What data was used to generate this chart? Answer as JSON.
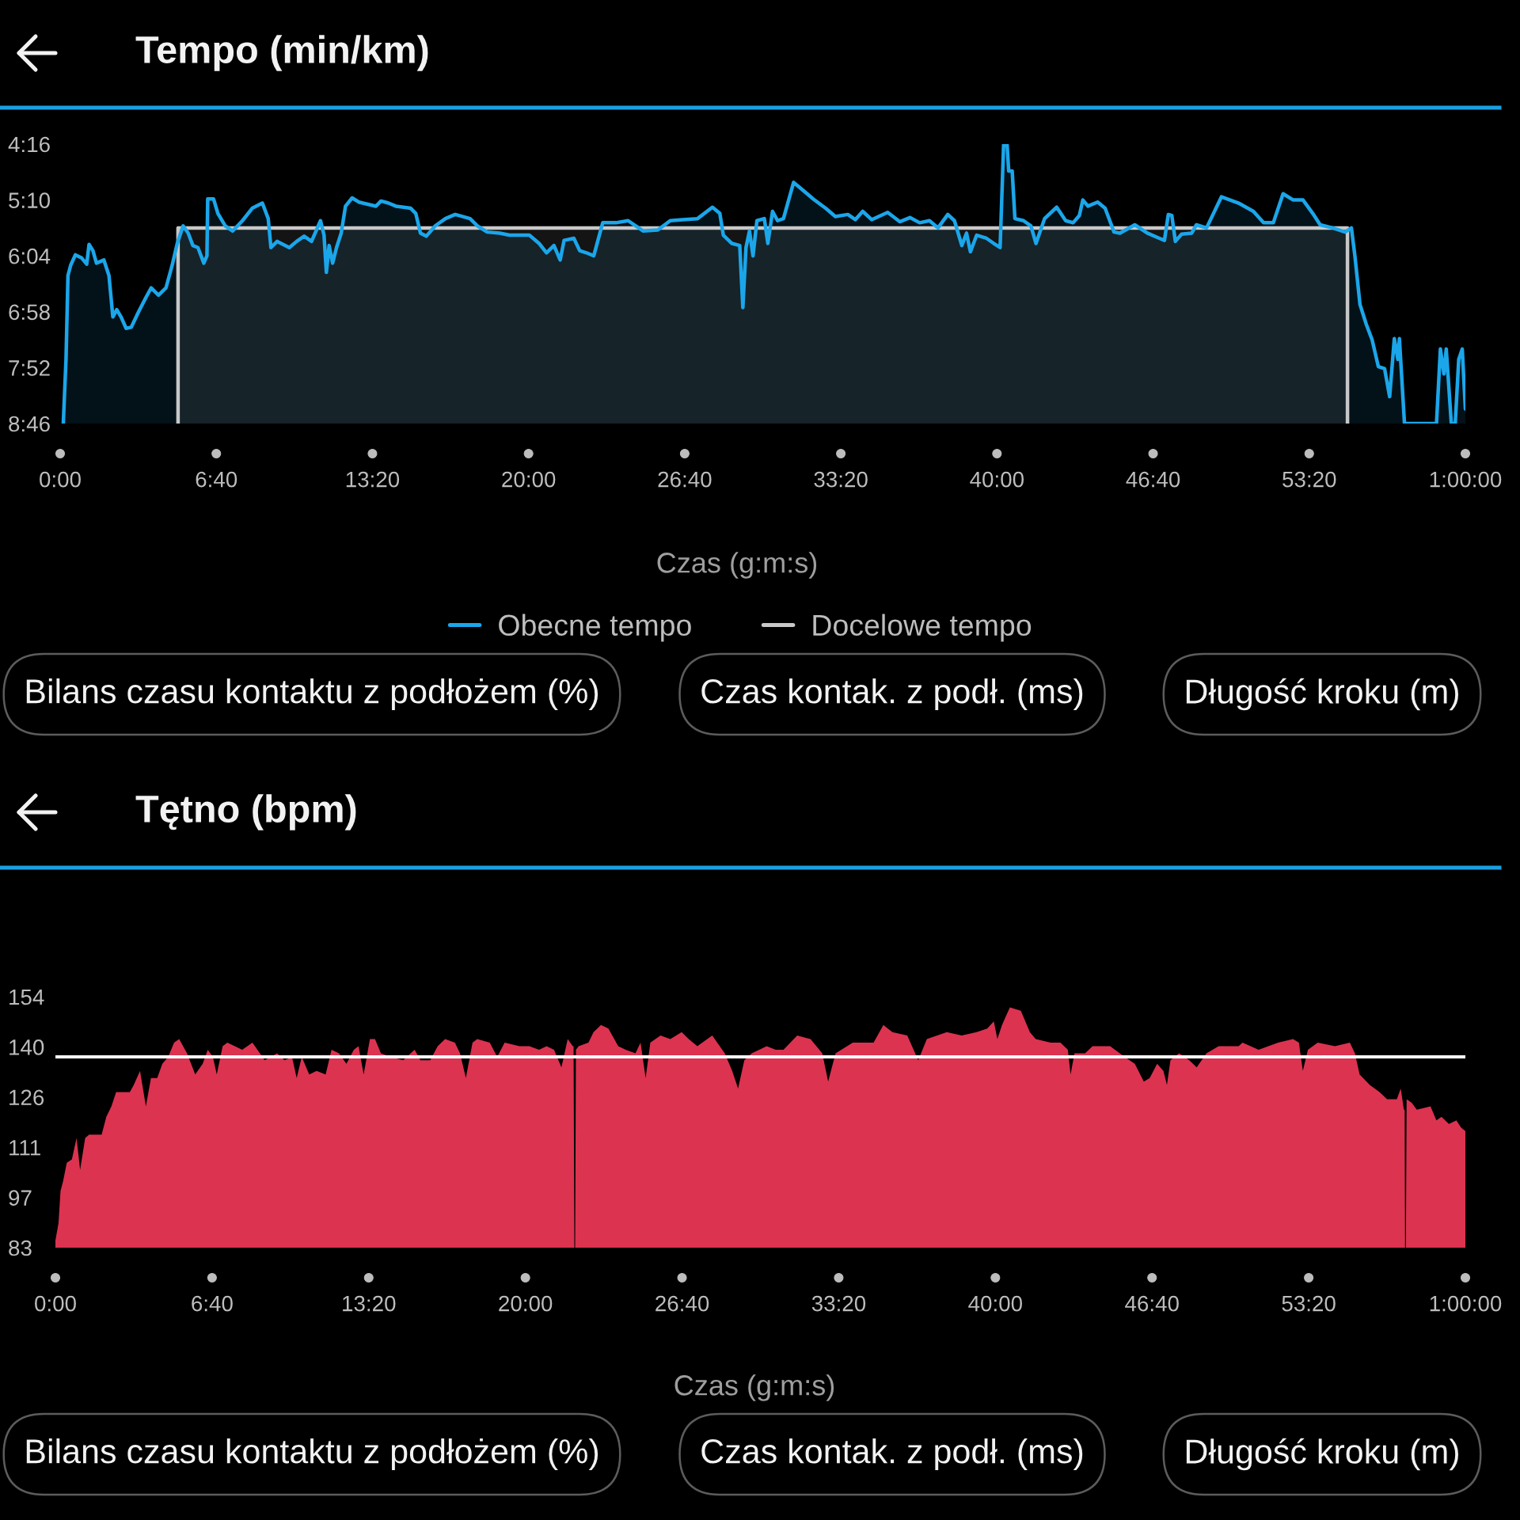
{
  "chart_data": [
    {
      "type": "line",
      "title": "Tempo (min/km)",
      "xlabel": "Czas (g:m:s)",
      "xlim": [
        0,
        3600
      ],
      "xticks": [
        {
          "value": 0,
          "label": "0:00"
        },
        {
          "value": 400,
          "label": "6:40"
        },
        {
          "value": 800,
          "label": "13:20"
        },
        {
          "value": 1200,
          "label": "20:00"
        },
        {
          "value": 1600,
          "label": "26:40"
        },
        {
          "value": 2000,
          "label": "33:20"
        },
        {
          "value": 2400,
          "label": "40:00"
        },
        {
          "value": 2800,
          "label": "46:40"
        },
        {
          "value": 3200,
          "label": "53:20"
        },
        {
          "value": 3600,
          "label": "1:00:00"
        }
      ],
      "ylim": [
        526,
        256
      ],
      "yticks": [
        {
          "value": 256,
          "label": "4:16"
        },
        {
          "value": 310,
          "label": "5:10"
        },
        {
          "value": 364,
          "label": "6:04"
        },
        {
          "value": 418,
          "label": "6:58"
        },
        {
          "value": 472,
          "label": "7:52"
        },
        {
          "value": 526,
          "label": "8:46"
        }
      ],
      "legend": "bottom",
      "series": [
        {
          "name": "Obecne tempo",
          "color": "#1ba6ea",
          "x": [
            8,
            15,
            20,
            27,
            39,
            55,
            68,
            74,
            84,
            93,
            112,
            125,
            135,
            145,
            156,
            169,
            182,
            201,
            220,
            233,
            252,
            271,
            287,
            300,
            315,
            328,
            340,
            353,
            368,
            376,
            378,
            393,
            404,
            423,
            442,
            467,
            492,
            518,
            533,
            540,
            556,
            587,
            606,
            625,
            644,
            667,
            676,
            682,
            689,
            698,
            708,
            720,
            731,
            748,
            765,
            809,
            822,
            841,
            860,
            898,
            911,
            923,
            938,
            961,
            987,
            1012,
            1050,
            1069,
            1094,
            1126,
            1151,
            1177,
            1202,
            1227,
            1246,
            1265,
            1281,
            1291,
            1316,
            1331,
            1348,
            1367,
            1390,
            1424,
            1455,
            1494,
            1531,
            1563,
            1595,
            1633,
            1671,
            1690,
            1699,
            1721,
            1741,
            1749,
            1757,
            1766,
            1775,
            1785,
            1804,
            1813,
            1825,
            1838,
            1853,
            1879,
            1898,
            1929,
            1961,
            1986,
            2018,
            2037,
            2056,
            2079,
            2120,
            2151,
            2177,
            2202,
            2227,
            2249,
            2274,
            2291,
            2310,
            2322,
            2332,
            2348,
            2373,
            2392,
            2408,
            2417,
            2426,
            2430,
            2439,
            2446,
            2468,
            2487,
            2500,
            2522,
            2553,
            2576,
            2595,
            2611,
            2620,
            2633,
            2658,
            2677,
            2700,
            2715,
            2753,
            2785,
            2816,
            2829,
            2839,
            2848,
            2857,
            2873,
            2899,
            2911,
            2937,
            2975,
            3019,
            3057,
            3083,
            3108,
            3133,
            3159,
            3184,
            3209,
            3228,
            3260,
            3292,
            3308,
            3317,
            3330,
            3346,
            3361,
            3377,
            3393,
            3406,
            3418,
            3427,
            3431,
            3444,
            3526,
            3536,
            3545,
            3551,
            3564,
            3574,
            3583,
            3592,
            3600
          ],
          "values": [
            526,
            464,
            383,
            373,
            363,
            366,
            372,
            353,
            359,
            371,
            368,
            383,
            423,
            416,
            423,
            434,
            433,
            418,
            404,
            395,
            402,
            395,
            373,
            352,
            335,
            342,
            354,
            356,
            371,
            364,
            309,
            309,
            323,
            335,
            340,
            330,
            318,
            313,
            328,
            356,
            350,
            356,
            350,
            345,
            350,
            330,
            344,
            380,
            354,
            371,
            356,
            342,
            316,
            308,
            312,
            316,
            311,
            313,
            316,
            318,
            323,
            342,
            345,
            335,
            328,
            324,
            328,
            335,
            341,
            342,
            344,
            344,
            344,
            352,
            361,
            354,
            368,
            349,
            347,
            359,
            361,
            364,
            332,
            332,
            330,
            340,
            339,
            330,
            329,
            328,
            317,
            323,
            344,
            352,
            354,
            414,
            356,
            340,
            364,
            330,
            328,
            352,
            321,
            330,
            328,
            293,
            299,
            309,
            318,
            326,
            324,
            329,
            321,
            329,
            322,
            331,
            327,
            332,
            330,
            337,
            324,
            330,
            354,
            342,
            360,
            344,
            347,
            352,
            356,
            257,
            257,
            282,
            282,
            328,
            330,
            335,
            352,
            328,
            317,
            330,
            332,
            325,
            310,
            316,
            312,
            318,
            341,
            342,
            334,
            342,
            347,
            349,
            324,
            325,
            350,
            343,
            342,
            334,
            337,
            307,
            313,
            321,
            332,
            332,
            304,
            310,
            310,
            323,
            334,
            337,
            341,
            337,
            364,
            411,
            430,
            445,
            471,
            473,
            500,
            444,
            464,
            444,
            526,
            526,
            454,
            478,
            454,
            526,
            526,
            464,
            454,
            512
          ]
        },
        {
          "name": "Docelowe tempo",
          "color": "#c8c8c8",
          "x": [
            302,
            302,
            3298,
            3298
          ],
          "values": [
            526,
            337,
            337,
            526
          ]
        }
      ],
      "annotations": [
        "Bilans czasu kontaktu z podłożem (%)",
        "Czas kontak. z podł. (ms)",
        "Długość kroku (m)"
      ]
    },
    {
      "type": "area",
      "title": "Tętno (bpm)",
      "xlabel": "Czas (g:m:s)",
      "xlim": [
        0,
        3600
      ],
      "xticks": [
        {
          "value": 0,
          "label": "0:00"
        },
        {
          "value": 400,
          "label": "6:40"
        },
        {
          "value": 800,
          "label": "13:20"
        },
        {
          "value": 1200,
          "label": "20:00"
        },
        {
          "value": 1600,
          "label": "26:40"
        },
        {
          "value": 2000,
          "label": "33:20"
        },
        {
          "value": 2400,
          "label": "40:00"
        },
        {
          "value": 2800,
          "label": "46:40"
        },
        {
          "value": 3200,
          "label": "53:20"
        },
        {
          "value": 3600,
          "label": "1:00:00"
        }
      ],
      "ylim": [
        83,
        154
      ],
      "yticks": [
        83,
        {
          "value": 97.2,
          "label": "97"
        },
        {
          "value": 111.4,
          "label": "111"
        },
        {
          "value": 125.6,
          "label": "126"
        },
        {
          "value": 139.8,
          "label": "140"
        },
        154
      ],
      "series": [
        {
          "color": "#dc3350",
          "x": [
            0,
            8,
            13,
            20,
            29,
            42,
            54,
            63,
            76,
            86,
            118,
            130,
            143,
            155,
            168,
            190,
            200,
            216,
            231,
            244,
            260,
            273,
            288,
            303,
            316,
            336,
            357,
            376,
            389,
            402,
            412,
            427,
            439,
            477,
            503,
            522,
            534,
            566,
            585,
            604,
            616,
            629,
            648,
            667,
            690,
            705,
            724,
            743,
            762,
            774,
            787,
            803,
            816,
            831,
            856,
            888,
            917,
            932,
            957,
            976,
            995,
            1020,
            1033,
            1048,
            1065,
            1077,
            1109,
            1128,
            1147,
            1185,
            1210,
            1235,
            1254,
            1273,
            1292,
            1308,
            1321,
            1323,
            1325,
            1327,
            1329,
            1336,
            1361,
            1374,
            1393,
            1412,
            1437,
            1456,
            1481,
            1494,
            1507,
            1519,
            1545,
            1570,
            1599,
            1617,
            1639,
            1677,
            1709,
            1728,
            1743,
            1759,
            1778,
            1816,
            1839,
            1859,
            1894,
            1928,
            1958,
            1973,
            1992,
            2036,
            2089,
            2114,
            2137,
            2175,
            2203,
            2225,
            2276,
            2314,
            2352,
            2379,
            2396,
            2405,
            2417,
            2437,
            2465,
            2488,
            2503,
            2541,
            2566,
            2585,
            2592,
            2602,
            2629,
            2648,
            2693,
            2730,
            2756,
            2779,
            2794,
            2813,
            2829,
            2838,
            2847,
            2869,
            2895,
            2914,
            2939,
            2970,
            3021,
            3031,
            3072,
            3122,
            3160,
            3175,
            3185,
            3198,
            3223,
            3267,
            3305,
            3318,
            3330,
            3356,
            3381,
            3400,
            3425,
            3435,
            3443,
            3445,
            3446,
            3448,
            3450,
            3463,
            3476,
            3511,
            3526,
            3539,
            3558,
            3577,
            3589,
            3600
          ],
          "values": [
            85,
            90,
            99,
            102,
            107,
            108,
            114,
            105,
            114,
            115,
            115,
            120,
            123,
            127,
            127,
            127,
            129,
            133,
            123,
            131,
            131,
            135,
            137,
            141,
            142,
            138,
            132,
            135,
            139,
            137,
            132,
            140,
            141,
            139,
            141,
            138,
            136,
            138,
            136,
            137,
            131,
            137,
            132,
            133,
            132,
            139,
            138,
            135,
            139,
            140,
            132,
            142,
            142,
            138,
            137,
            136,
            139,
            136,
            136,
            140,
            142,
            141,
            138,
            131,
            141,
            142,
            141,
            137,
            141,
            140,
            140,
            139,
            140,
            139,
            134,
            142,
            140,
            140,
            83,
            83,
            139,
            140,
            141,
            144,
            146,
            145,
            140,
            139,
            138,
            141,
            131,
            141,
            143,
            142,
            144,
            142,
            140,
            143,
            138,
            133,
            128,
            136,
            138,
            140,
            139,
            139,
            143,
            142,
            138,
            130,
            138,
            141,
            141,
            146,
            144,
            143,
            136,
            142,
            144,
            143,
            144,
            145,
            147,
            142,
            146,
            151,
            150,
            144,
            142,
            141,
            141,
            139,
            132,
            138,
            138,
            140,
            140,
            137,
            135,
            130,
            131,
            135,
            133,
            129,
            136,
            138,
            136,
            134,
            138,
            140,
            140,
            141,
            139,
            141,
            142,
            141,
            133,
            139,
            141,
            140,
            141,
            138,
            132,
            129,
            127,
            125,
            125,
            128,
            122,
            122,
            83,
            83,
            125,
            124,
            122,
            123,
            119,
            120,
            118,
            119,
            117,
            116
          ]
        }
      ],
      "ref_lines": [
        {
          "axis": "y",
          "value": 137,
          "color": "#ffffff"
        }
      ],
      "annotations": [
        "Bilans czasu kontaktu z podłożem (%)",
        "Czas kontak. z podł. (ms)",
        "Długość kroku (m)"
      ]
    }
  ]
}
